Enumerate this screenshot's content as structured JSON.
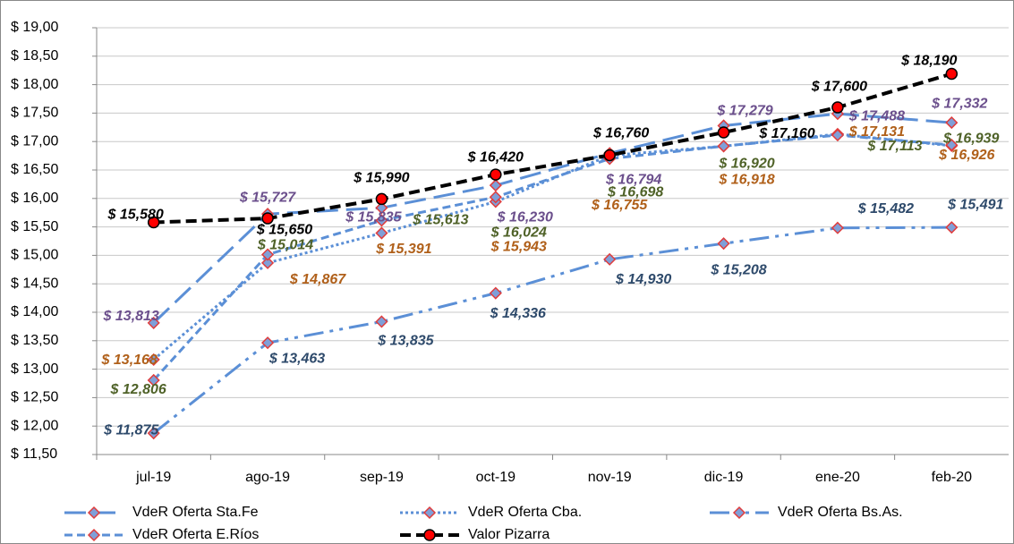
{
  "chart_data": {
    "type": "line",
    "categories": [
      "jul-19",
      "ago-19",
      "sep-19",
      "oct-19",
      "nov-19",
      "dic-19",
      "ene-20",
      "feb-20"
    ],
    "ylim": [
      11.5,
      19
    ],
    "yticks": [
      {
        "value": 11.5,
        "label": "$ 11,50"
      },
      {
        "value": 12,
        "label": "$ 12,00"
      },
      {
        "value": 12.5,
        "label": "$ 12,50"
      },
      {
        "value": 13,
        "label": "$ 13,00"
      },
      {
        "value": 13.5,
        "label": "$ 13,50"
      },
      {
        "value": 14,
        "label": "$ 14,00"
      },
      {
        "value": 14.5,
        "label": "$ 14,50"
      },
      {
        "value": 15,
        "label": "$ 15,00"
      },
      {
        "value": 15.5,
        "label": "$ 15,50"
      },
      {
        "value": 16,
        "label": "$ 16,00"
      },
      {
        "value": 16.5,
        "label": "$ 16,50"
      },
      {
        "value": 17,
        "label": "$ 17,00"
      },
      {
        "value": 17.5,
        "label": "$ 17,50"
      },
      {
        "value": 18,
        "label": "$ 18,00"
      },
      {
        "value": 18.5,
        "label": "$ 18,50"
      },
      {
        "value": 19,
        "label": "$ 19,00"
      }
    ],
    "grid": true,
    "legend": "bottom",
    "series": [
      {
        "name": "VdeR Oferta Sta.Fe",
        "color": "#5b8fd6",
        "style": "long-dash",
        "marker": "diamond",
        "label_color": "#6b4f8c",
        "values": [
          13.813,
          15.727,
          15.835,
          16.23,
          16.794,
          17.279,
          17.488,
          17.332
        ],
        "value_labels": [
          "$ 13,813",
          "$ 15,727",
          "$ 15,835",
          "$ 16,230",
          "$ 16,794",
          "$ 17,279",
          "$ 17,488",
          "$ 17,332"
        ]
      },
      {
        "name": "VdeR Oferta Cba.",
        "color": "#5b8fd6",
        "style": "dotted",
        "marker": "diamond",
        "label_color": "#b0601a",
        "values": [
          13.168,
          14.867,
          15.391,
          15.943,
          16.755,
          16.918,
          17.131,
          16.926
        ],
        "value_labels": [
          "$ 13,168",
          "$ 14,867",
          "$ 15,391",
          "$ 15,943",
          "$ 16,755",
          "$ 16,918",
          "$ 17,131",
          "$ 16,926"
        ]
      },
      {
        "name": "VdeR Oferta Bs.As.",
        "color": "#5b8fd6",
        "style": "dash-dot-dot",
        "marker": "diamond",
        "label_color": "#2e4a6b",
        "values": [
          11.875,
          13.463,
          13.835,
          14.336,
          14.93,
          15.208,
          15.482,
          15.491
        ],
        "value_labels": [
          "$ 11,875",
          "$ 13,463",
          "$ 13,835",
          "$ 14,336",
          "$ 14,930",
          "$ 15,208",
          "$ 15,482",
          "$ 15,491"
        ]
      },
      {
        "name": "VdeR Oferta E.Ríos",
        "color": "#5b8fd6",
        "style": "dash",
        "marker": "diamond",
        "label_color": "#4f6228",
        "values": [
          12.806,
          15.014,
          15.613,
          16.024,
          16.698,
          16.92,
          17.113,
          16.939
        ],
        "value_labels": [
          "$ 12,806",
          "$ 15,014",
          "$ 15,613",
          "$ 16,024",
          "$ 16,698",
          "$ 16,920",
          "$ 17,113",
          "$ 16,939"
        ]
      },
      {
        "name": "Valor Pizarra",
        "color": "#000000",
        "style": "bold-dash",
        "marker": "circle",
        "label_color": "#000000",
        "values": [
          15.58,
          15.65,
          15.99,
          16.42,
          16.76,
          17.16,
          17.6,
          18.19
        ],
        "value_labels": [
          "$ 15,580",
          "$ 15,650",
          "$ 15,990",
          "$ 16,420",
          "$ 16,760",
          "$ 17,160",
          "$ 17,600",
          "$ 18,190"
        ]
      }
    ]
  }
}
